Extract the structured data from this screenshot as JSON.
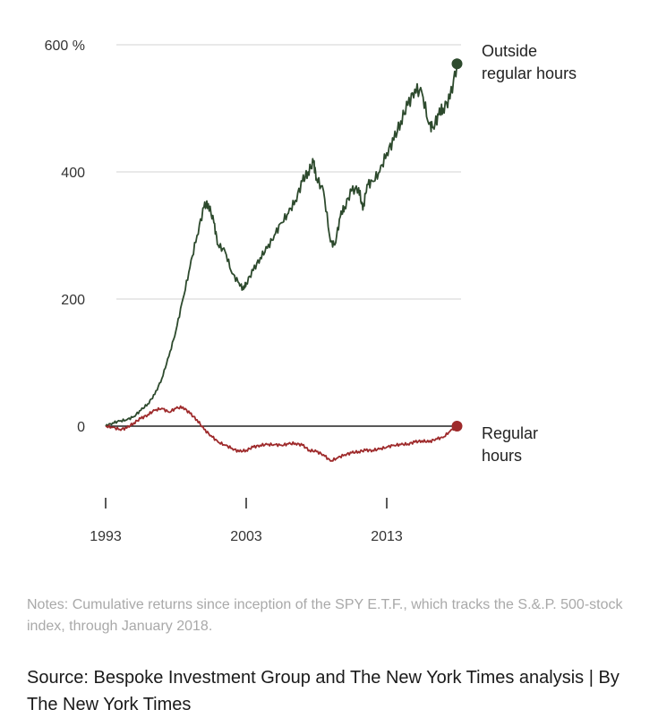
{
  "chart_data": {
    "type": "line",
    "xlim": [
      1993,
      2018.1
    ],
    "ylim": [
      -50,
      600
    ],
    "yticks": [
      {
        "value": 600,
        "label": "600 %"
      },
      {
        "value": 400,
        "label": "400"
      },
      {
        "value": 200,
        "label": "200"
      },
      {
        "value": 0,
        "label": "0"
      }
    ],
    "xticks": [
      {
        "value": 1993,
        "label": "1993"
      },
      {
        "value": 2003,
        "label": "2003"
      },
      {
        "value": 2013,
        "label": "2013"
      }
    ],
    "series": [
      {
        "name": "Outside regular hours",
        "label_lines": [
          "Outside",
          "regular hours"
        ],
        "color": "#2d4a2d",
        "x": [
          1993.0,
          1993.5,
          1994.0,
          1994.5,
          1995.0,
          1995.5,
          1996.0,
          1996.5,
          1997.0,
          1997.5,
          1998.0,
          1998.5,
          1999.0,
          1999.5,
          2000.0,
          2000.3,
          2000.7,
          2001.0,
          2001.5,
          2002.0,
          2002.5,
          2002.8,
          2003.0,
          2003.5,
          2004.0,
          2004.5,
          2005.0,
          2005.5,
          2006.0,
          2006.5,
          2007.0,
          2007.4,
          2007.8,
          2008.0,
          2008.5,
          2009.0,
          2009.3,
          2009.7,
          2010.0,
          2010.5,
          2011.0,
          2011.3,
          2011.6,
          2012.0,
          2012.5,
          2013.0,
          2013.5,
          2014.0,
          2014.5,
          2015.0,
          2015.5,
          2016.0,
          2016.3,
          2016.7,
          2017.0,
          2017.5,
          2018.0
        ],
        "values": [
          0,
          5,
          8,
          10,
          15,
          25,
          35,
          50,
          75,
          110,
          150,
          200,
          250,
          300,
          345,
          350,
          320,
          285,
          275,
          240,
          225,
          215,
          225,
          245,
          265,
          280,
          300,
          320,
          335,
          355,
          385,
          400,
          415,
          390,
          370,
          290,
          285,
          330,
          345,
          370,
          375,
          340,
          380,
          385,
          400,
          430,
          450,
          480,
          505,
          530,
          525,
          475,
          470,
          490,
          500,
          515,
          570
        ]
      },
      {
        "name": "Regular hours",
        "label_lines": [
          "Regular",
          "hours"
        ],
        "color": "#9e2a2b",
        "x": [
          1993.0,
          1993.5,
          1994.0,
          1994.5,
          1995.0,
          1995.5,
          1996.0,
          1996.5,
          1997.0,
          1997.5,
          1998.0,
          1998.5,
          1999.0,
          1999.5,
          2000.0,
          2000.5,
          2001.0,
          2001.5,
          2002.0,
          2002.5,
          2003.0,
          2003.5,
          2004.0,
          2004.5,
          2005.0,
          2005.5,
          2006.0,
          2006.5,
          2007.0,
          2007.5,
          2008.0,
          2008.5,
          2009.0,
          2009.5,
          2010.0,
          2010.5,
          2011.0,
          2011.5,
          2012.0,
          2012.5,
          2013.0,
          2013.5,
          2014.0,
          2014.5,
          2015.0,
          2015.5,
          2016.0,
          2016.5,
          2017.0,
          2017.5,
          2018.0
        ],
        "values": [
          0,
          -2,
          -5,
          -3,
          5,
          12,
          18,
          25,
          28,
          22,
          28,
          30,
          20,
          10,
          -5,
          -15,
          -25,
          -30,
          -35,
          -40,
          -38,
          -33,
          -30,
          -29,
          -29,
          -30,
          -28,
          -27,
          -30,
          -38,
          -40,
          -45,
          -55,
          -50,
          -45,
          -42,
          -40,
          -38,
          -38,
          -36,
          -33,
          -30,
          -29,
          -28,
          -25,
          -23,
          -25,
          -20,
          -18,
          -8,
          0
        ]
      }
    ]
  },
  "notes": "Notes: Cumulative returns since inception of the SPY E.T.F., which tracks the S.&.P. 500-stock index, through January 2018.",
  "source": "Source: Bespoke Investment Group and The New York Times analysis | By The New York Times"
}
